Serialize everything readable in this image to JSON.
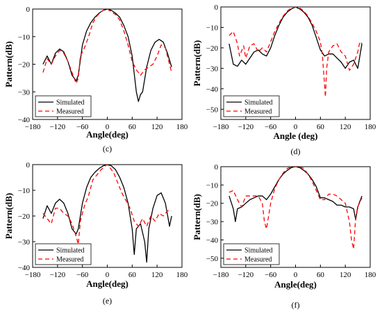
{
  "chart_data": [
    {
      "type": "line",
      "caption": "(c)",
      "xlabel": "Angle(deg)",
      "ylabel": "Pattern(dB)",
      "xlim": [
        -180,
        180
      ],
      "ylim": [
        -40,
        0
      ],
      "xticks": [
        -180,
        -120,
        -60,
        0,
        60,
        120,
        180
      ],
      "yticks": [
        0,
        -10,
        -20,
        -30,
        -40
      ],
      "legend_position": "bottom-left",
      "series": [
        {
          "name": "Simulated",
          "color": "#000000",
          "dash": "solid",
          "x": [
            -155,
            -145,
            -135,
            -125,
            -115,
            -105,
            -95,
            -85,
            -75,
            -70,
            -60,
            -50,
            -40,
            -30,
            -20,
            -10,
            0,
            10,
            20,
            30,
            40,
            50,
            60,
            70,
            75,
            80,
            85,
            95,
            105,
            115,
            125,
            135,
            145,
            155
          ],
          "y": [
            -20,
            -17,
            -20,
            -16,
            -14.5,
            -15.5,
            -19,
            -24,
            -26,
            -24,
            -13,
            -8,
            -5,
            -3,
            -1.5,
            -0.5,
            0,
            -0.5,
            -1.5,
            -3,
            -6,
            -10,
            -17,
            -30,
            -33.5,
            -31,
            -30,
            -21,
            -15,
            -12,
            -11,
            -12,
            -16,
            -21
          ]
        },
        {
          "name": "Measured",
          "color": "#ff0000",
          "dash": "6,4",
          "x": [
            -155,
            -145,
            -135,
            -125,
            -115,
            -105,
            -95,
            -85,
            -75,
            -70,
            -65,
            -55,
            -45,
            -35,
            -25,
            -15,
            -5,
            0,
            10,
            20,
            30,
            40,
            50,
            60,
            70,
            80,
            90,
            100,
            110,
            120,
            130,
            140,
            155
          ],
          "y": [
            -23,
            -18,
            -20,
            -17,
            -15,
            -16,
            -19,
            -23,
            -27,
            -25,
            -17,
            -14,
            -10,
            -5,
            -2.5,
            -1,
            0,
            0,
            -1,
            -2,
            -4,
            -8,
            -13,
            -19,
            -22,
            -24,
            -22,
            -21,
            -20,
            -17,
            -13,
            -14,
            -23
          ]
        }
      ]
    },
    {
      "type": "line",
      "caption": "(d)",
      "xlabel": "Angle (deg)",
      "ylabel": "Pattern(dB)",
      "xlim": [
        -180,
        180
      ],
      "ylim": [
        -55,
        0
      ],
      "xticks": [
        -180,
        -120,
        -60,
        0,
        60,
        120,
        180
      ],
      "yticks": [
        0,
        -10,
        -20,
        -30,
        -40,
        -50
      ],
      "legend_position": "bottom-left",
      "series": [
        {
          "name": "Simulated",
          "color": "#000000",
          "dash": "solid",
          "x": [
            -160,
            -150,
            -140,
            -130,
            -120,
            -110,
            -100,
            -90,
            -80,
            -70,
            -60,
            -50,
            -40,
            -30,
            -20,
            -10,
            0,
            10,
            20,
            30,
            40,
            50,
            60,
            70,
            80,
            90,
            100,
            110,
            120,
            130,
            140,
            150,
            160
          ],
          "y": [
            -18,
            -28,
            -29,
            -26,
            -28,
            -25,
            -22,
            -21,
            -23,
            -24,
            -20,
            -14,
            -9,
            -5,
            -2.5,
            -1,
            0,
            -1,
            -2.5,
            -5,
            -9,
            -15,
            -21,
            -24,
            -23,
            -23,
            -25,
            -27,
            -30,
            -27,
            -26,
            -30,
            -18
          ]
        },
        {
          "name": "Measured",
          "color": "#ff0000",
          "dash": "6,4",
          "x": [
            -160,
            -150,
            -140,
            -135,
            -125,
            -120,
            -110,
            -100,
            -90,
            -80,
            -70,
            -60,
            -50,
            -40,
            -30,
            -20,
            -10,
            0,
            10,
            20,
            30,
            40,
            50,
            60,
            65,
            70,
            72,
            75,
            80,
            90,
            100,
            110,
            120,
            130,
            140,
            150,
            155,
            160
          ],
          "y": [
            -14,
            -12,
            -18,
            -24,
            -19,
            -25,
            -19,
            -18,
            -22,
            -20,
            -22,
            -17,
            -12,
            -8,
            -4.5,
            -2,
            -0.5,
            0,
            -0.5,
            -2,
            -4.5,
            -8,
            -12,
            -17,
            -24,
            -38,
            -44,
            -30,
            -22,
            -19,
            -18,
            -22,
            -24,
            -31,
            -28,
            -22,
            -17,
            -18
          ]
        }
      ]
    },
    {
      "type": "line",
      "caption": "(e)",
      "xlabel": "Angle(deg)",
      "ylabel": "Pattern(dB)",
      "xlim": [
        -180,
        180
      ],
      "ylim": [
        -40,
        0
      ],
      "xticks": [
        -180,
        -120,
        -60,
        0,
        60,
        120,
        180
      ],
      "yticks": [
        0,
        -10,
        -20,
        -30,
        -40
      ],
      "legend_position": "bottom-left",
      "series": [
        {
          "name": "Simulated",
          "color": "#000000",
          "dash": "solid",
          "x": [
            -155,
            -145,
            -135,
            -125,
            -115,
            -105,
            -95,
            -85,
            -75,
            -70,
            -60,
            -50,
            -40,
            -30,
            -20,
            -10,
            0,
            10,
            20,
            30,
            40,
            50,
            60,
            65,
            70,
            80,
            90,
            95,
            100,
            110,
            120,
            130,
            140,
            150,
            155
          ],
          "y": [
            -21,
            -16,
            -19,
            -15,
            -13.5,
            -15,
            -19,
            -25,
            -27,
            -25,
            -15,
            -9,
            -5,
            -3,
            -1.5,
            -0.5,
            0,
            -0.5,
            -2,
            -5,
            -9,
            -15,
            -25,
            -35,
            -25,
            -23,
            -30,
            -38,
            -25,
            -17,
            -12,
            -11,
            -15,
            -24,
            -20
          ]
        },
        {
          "name": "Measured",
          "color": "#ff0000",
          "dash": "6,4",
          "x": [
            -155,
            -145,
            -135,
            -125,
            -115,
            -105,
            -95,
            -85,
            -75,
            -70,
            -65,
            -55,
            -45,
            -35,
            -25,
            -15,
            -5,
            0,
            5,
            15,
            25,
            35,
            45,
            55,
            65,
            75,
            85,
            95,
            105,
            115,
            125,
            135,
            145,
            155
          ],
          "y": [
            -19,
            -21,
            -23,
            -17,
            -17,
            -19,
            -20,
            -23,
            -28,
            -31,
            -22,
            -16,
            -12,
            -6,
            -4,
            -2,
            -0.5,
            0,
            -1,
            -3,
            -7,
            -11,
            -14,
            -17,
            -22,
            -24,
            -21,
            -24,
            -20,
            -22,
            -19,
            -20,
            -18,
            -18
          ]
        }
      ]
    },
    {
      "type": "line",
      "caption": "(f)",
      "xlabel": "Angle(deg)",
      "ylabel": "Pattern(dB)",
      "xlim": [
        -180,
        180
      ],
      "ylim": [
        -55,
        0
      ],
      "xticks": [
        -180,
        -120,
        -60,
        0,
        60,
        120,
        180
      ],
      "yticks": [
        0,
        -10,
        -20,
        -30,
        -40,
        -50
      ],
      "legend_position": "bottom-left",
      "series": [
        {
          "name": "Simulated",
          "color": "#000000",
          "dash": "solid",
          "x": [
            -160,
            -150,
            -145,
            -140,
            -130,
            -120,
            -110,
            -100,
            -90,
            -80,
            -70,
            -60,
            -50,
            -40,
            -30,
            -20,
            -10,
            0,
            10,
            20,
            30,
            40,
            50,
            60,
            70,
            80,
            90,
            100,
            110,
            120,
            130,
            140,
            145,
            150,
            160
          ],
          "y": [
            -16,
            -23,
            -30,
            -23,
            -22,
            -20,
            -18,
            -17,
            -16,
            -16,
            -18,
            -15,
            -11,
            -7,
            -4,
            -2,
            -0.5,
            0,
            -0.5,
            -2,
            -4,
            -7,
            -11,
            -17,
            -17,
            -18,
            -19,
            -21,
            -21,
            -22,
            -22,
            -23,
            -29,
            -22,
            -16
          ]
        },
        {
          "name": "Measured",
          "color": "#ff0000",
          "dash": "6,4",
          "x": [
            -160,
            -150,
            -140,
            -130,
            -120,
            -110,
            -100,
            -90,
            -80,
            -75,
            -70,
            -60,
            -50,
            -40,
            -30,
            -20,
            -10,
            0,
            10,
            20,
            30,
            40,
            50,
            60,
            70,
            80,
            90,
            100,
            110,
            120,
            130,
            135,
            140,
            145,
            150,
            160
          ],
          "y": [
            -14,
            -13,
            -18,
            -22,
            -16,
            -16,
            -16,
            -16,
            -20,
            -30,
            -34,
            -20,
            -12,
            -7,
            -3.5,
            -1,
            0,
            0,
            0,
            -1,
            -4,
            -8,
            -13,
            -18,
            -18,
            -15,
            -15,
            -16,
            -18,
            -20,
            -30,
            -40,
            -45,
            -28,
            -22,
            -17
          ]
        }
      ]
    }
  ]
}
